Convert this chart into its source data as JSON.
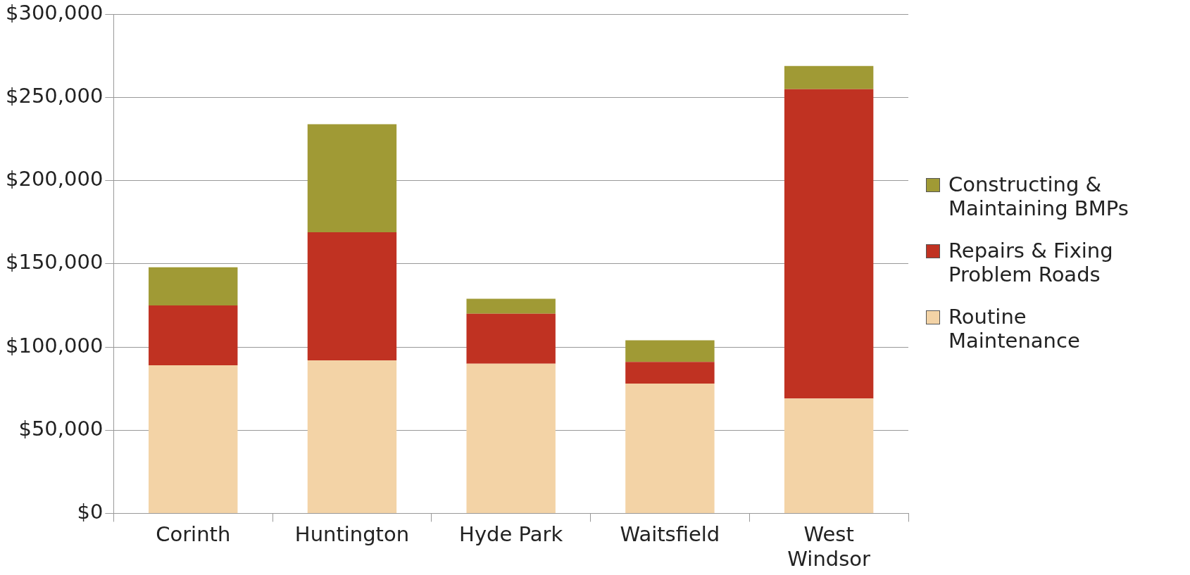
{
  "chart_data": {
    "type": "bar",
    "stacked": true,
    "categories": [
      "Corinth",
      "Huntington",
      "Hyde Park",
      "Waitsfield",
      "West Windsor"
    ],
    "series": [
      {
        "name": "Routine Maintenance",
        "color": "#f3d3a6",
        "values": [
          89000,
          92000,
          90000,
          78000,
          69000
        ]
      },
      {
        "name": "Repairs & Fixing Problem Roads",
        "color": "#c03222",
        "values": [
          36000,
          77000,
          30000,
          13000,
          186000
        ]
      },
      {
        "name": "Constructing & Maintaining BMPs",
        "color": "#a09a35",
        "values": [
          23000,
          65000,
          9000,
          13000,
          14000
        ]
      }
    ],
    "ylim": [
      0,
      300000
    ],
    "yticks": [
      {
        "value": 0,
        "label": "$0"
      },
      {
        "value": 50000,
        "label": "$50,000"
      },
      {
        "value": 100000,
        "label": "$100,000"
      },
      {
        "value": 150000,
        "label": "$150,000"
      },
      {
        "value": 200000,
        "label": "$200,000"
      },
      {
        "value": 250000,
        "label": "$250,000"
      },
      {
        "value": 300000,
        "label": "$300,000"
      }
    ],
    "grid": "y",
    "legend": "right"
  }
}
